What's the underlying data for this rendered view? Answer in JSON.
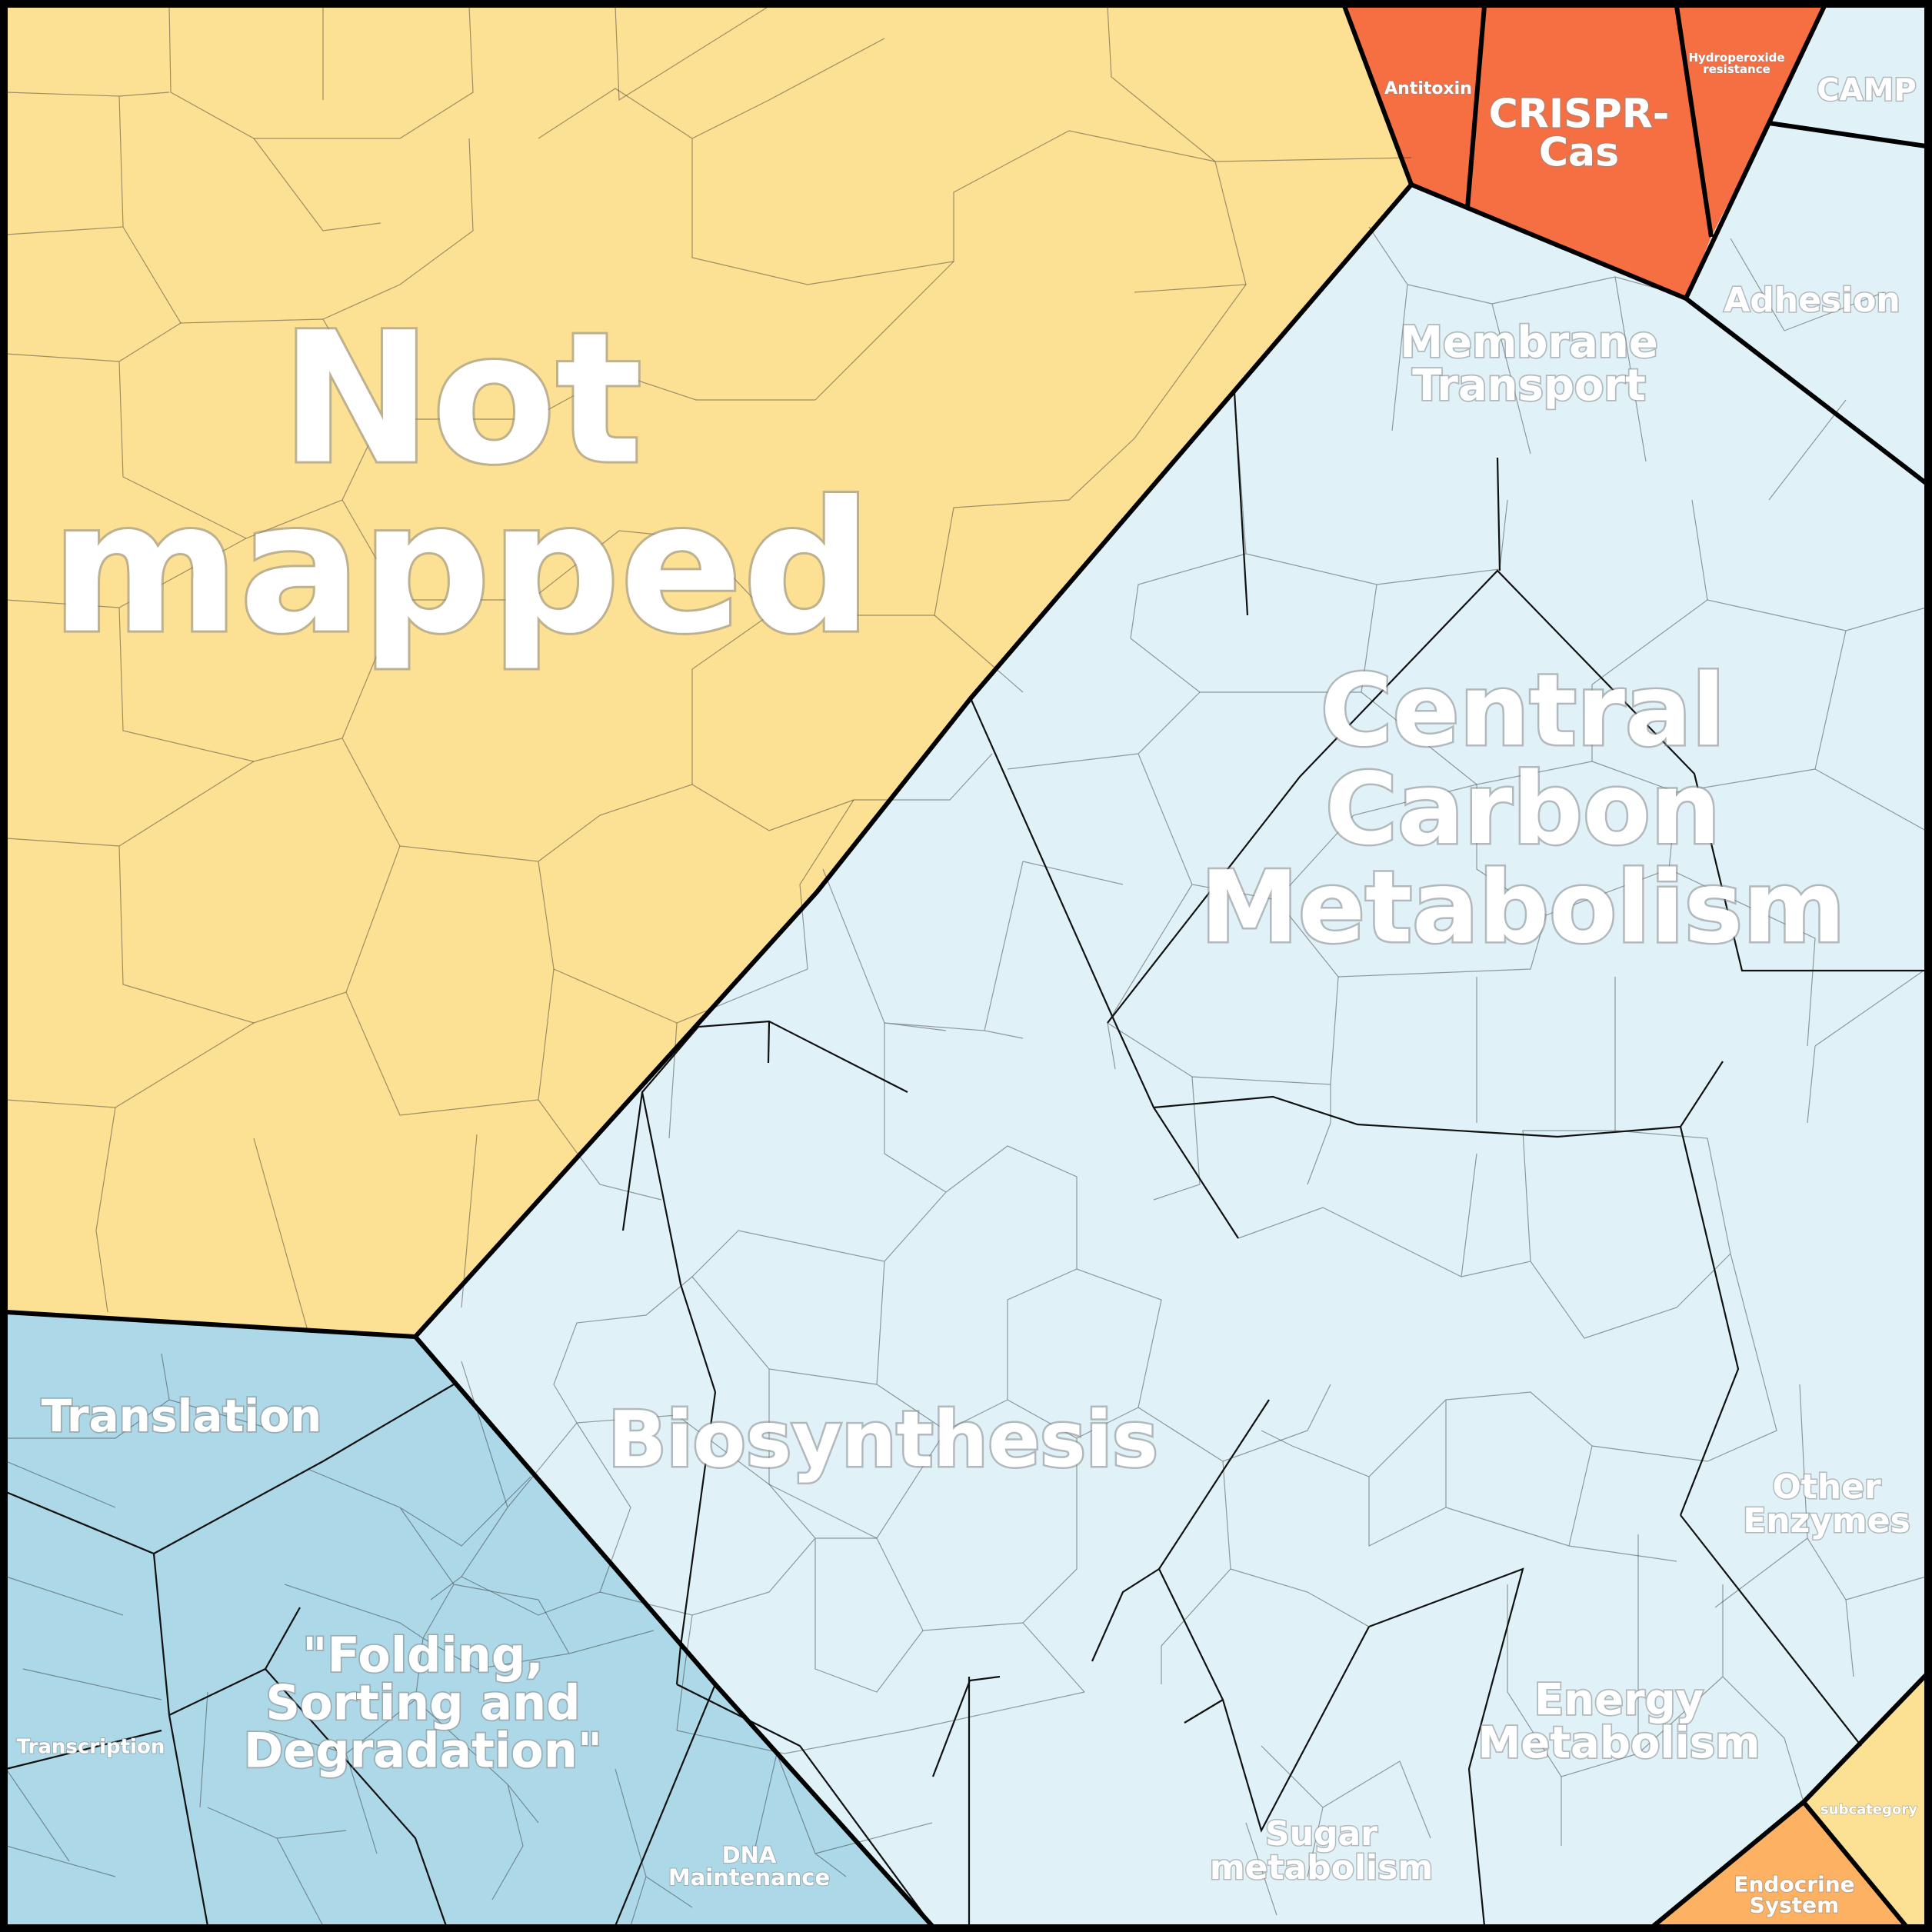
{
  "colors": {
    "not_mapped": "#FCE093",
    "metabolism": "#E0F2F8",
    "genetic_information": "#ADD8E7",
    "defense": "#F66F43",
    "organismal": "#FDB163",
    "subcategory_yellow": "#FCE093",
    "border": "#000000"
  },
  "regions": {
    "not_mapped": {
      "label": "Not\nmapped"
    },
    "antitoxin": {
      "label": "Antitoxin"
    },
    "crispr": {
      "label": "CRISPR-\nCas"
    },
    "hydroperoxide": {
      "label": "Hydroperoxide\nresistance"
    },
    "camp": {
      "label": "CAMP"
    },
    "adhesion": {
      "label": "Adhesion"
    },
    "membrane_transport": {
      "label": "Membrane\nTransport"
    },
    "central_carbon": {
      "label": "Central\nCarbon\nMetabolism"
    },
    "biosynthesis": {
      "label": "Biosynthesis"
    },
    "translation": {
      "label": "Translation"
    },
    "transcription": {
      "label": "Transcription"
    },
    "folding": {
      "label": "\"Folding,\nSorting and\nDegradation\""
    },
    "dna_maintenance": {
      "label": "DNA\nMaintenance"
    },
    "sugar_metabolism": {
      "label": "Sugar\nmetabolism"
    },
    "energy_metabolism": {
      "label": "Energy\nMetabolism"
    },
    "other_enzymes": {
      "label": "Other\nEnzymes"
    },
    "subcategory": {
      "label": "subcategory"
    },
    "endocrine": {
      "label": "Endocrine\nSystem"
    }
  }
}
